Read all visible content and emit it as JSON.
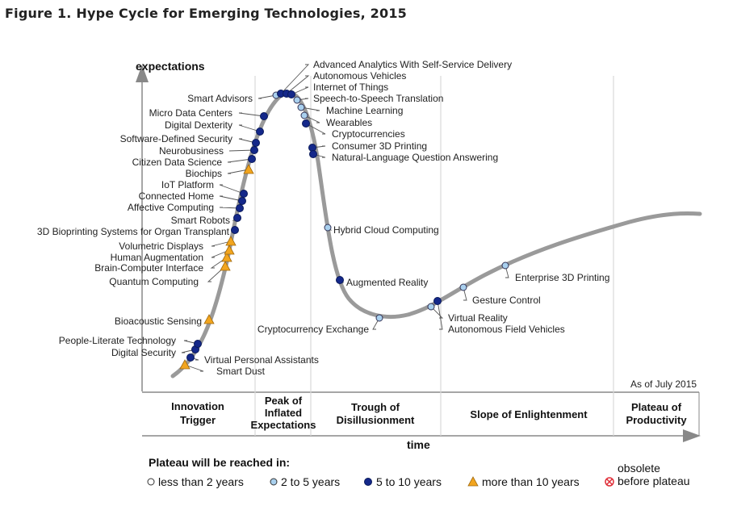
{
  "title": "Figure 1. Hype Cycle for Emerging Technologies, 2015",
  "chart_data": {
    "type": "line",
    "title": "Hype Cycle for Emerging Technologies, 2015",
    "ylabel": "expectations",
    "xlabel": "time",
    "as_of": "As of July 2015",
    "phases": [
      "Innovation Trigger",
      "Peak of Inflated Expectations",
      "Trough of Disillusionment",
      "Slope of Enlightenment",
      "Plateau of Productivity"
    ],
    "legend": {
      "title": "Plateau will be reached in:",
      "entries": [
        {
          "key": "lt2",
          "label": "less than 2 years",
          "color": "#ffffff"
        },
        {
          "key": "2to5",
          "label": "2 to 5 years",
          "color": "#a9d0ee"
        },
        {
          "key": "5to10",
          "label": "5 to 10 years",
          "color": "#14288a"
        },
        {
          "key": "gt10",
          "label": "more than 10 years",
          "color": "#f2a51e"
        },
        {
          "key": "obsolete",
          "label_line1": "obsolete",
          "label_line2": "before plateau",
          "color": "#e0303a"
        }
      ]
    },
    "technologies": [
      {
        "name": "Smart Dust",
        "cat": "gt10"
      },
      {
        "name": "Virtual Personal Assistants",
        "cat": "5to10"
      },
      {
        "name": "Digital Security",
        "cat": "5to10"
      },
      {
        "name": "People-Literate Technology",
        "cat": "5to10"
      },
      {
        "name": "Bioacoustic Sensing",
        "cat": "gt10"
      },
      {
        "name": "Quantum Computing",
        "cat": "gt10"
      },
      {
        "name": "Brain-Computer Interface",
        "cat": "gt10"
      },
      {
        "name": "Human Augmentation",
        "cat": "gt10"
      },
      {
        "name": "Volumetric Displays",
        "cat": "gt10"
      },
      {
        "name": "3D Bioprinting Systems for Organ Transplant",
        "cat": "5to10"
      },
      {
        "name": "Smart Robots",
        "cat": "5to10"
      },
      {
        "name": "Affective Computing",
        "cat": "5to10"
      },
      {
        "name": "Connected Home",
        "cat": "5to10"
      },
      {
        "name": "IoT Platform",
        "cat": "5to10"
      },
      {
        "name": "Biochips",
        "cat": "gt10"
      },
      {
        "name": "Citizen Data Science",
        "cat": "5to10"
      },
      {
        "name": "Neurobusiness",
        "cat": "5to10"
      },
      {
        "name": "Software-Defined Security",
        "cat": "5to10"
      },
      {
        "name": "Digital Dexterity",
        "cat": "5to10"
      },
      {
        "name": "Micro Data Centers",
        "cat": "5to10"
      },
      {
        "name": "Smart Advisors",
        "cat": "2to5"
      },
      {
        "name": "Advanced Analytics With Self-Service Delivery",
        "cat": "5to10"
      },
      {
        "name": "Autonomous Vehicles",
        "cat": "5to10"
      },
      {
        "name": "Internet of Things",
        "cat": "5to10"
      },
      {
        "name": "Speech-to-Speech Translation",
        "cat": "2to5"
      },
      {
        "name": "Machine Learning",
        "cat": "2to5"
      },
      {
        "name": "Wearables",
        "cat": "2to5"
      },
      {
        "name": "Cryptocurrencies",
        "cat": "5to10"
      },
      {
        "name": "Consumer 3D Printing",
        "cat": "5to10"
      },
      {
        "name": "Natural-Language Question Answering",
        "cat": "5to10"
      },
      {
        "name": "Hybrid Cloud Computing",
        "cat": "2to5"
      },
      {
        "name": "Augmented Reality",
        "cat": "5to10"
      },
      {
        "name": "Cryptocurrency Exchange",
        "cat": "2to5"
      },
      {
        "name": "Virtual Reality",
        "cat": "2to5"
      },
      {
        "name": "Autonomous Field Vehicles",
        "cat": "5to10"
      },
      {
        "name": "Gesture Control",
        "cat": "2to5"
      },
      {
        "name": "Enterprise 3D Printing",
        "cat": "2to5"
      }
    ]
  }
}
